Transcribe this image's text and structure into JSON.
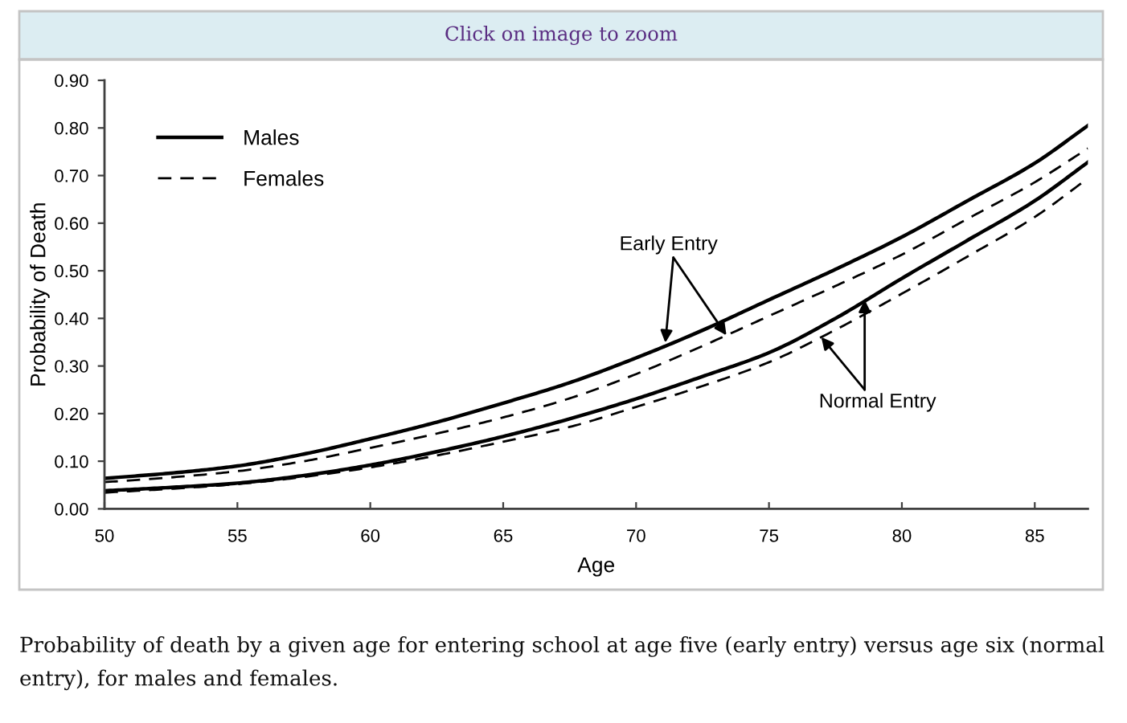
{
  "chart_data": {
    "type": "line",
    "xlabel": "Age",
    "ylabel": "Probability of Death",
    "x": [
      50,
      52.5,
      55,
      57.5,
      60,
      62.5,
      65,
      67.5,
      70,
      72.5,
      75,
      77.5,
      80,
      82.5,
      85,
      87
    ],
    "series": [
      {
        "name": "Males",
        "color": "#000000",
        "line_style": "solid",
        "values": [
          0.064,
          0.075,
          0.09,
          0.115,
          0.147,
          0.182,
          0.222,
          0.265,
          0.317,
          0.375,
          0.439,
          0.503,
          0.571,
          0.648,
          0.726,
          0.805
        ]
      },
      {
        "name": "Females",
        "color": "#000000",
        "line_style": "dashed",
        "values": [
          0.056,
          0.066,
          0.079,
          0.1,
          0.128,
          0.158,
          0.192,
          0.232,
          0.283,
          0.342,
          0.405,
          0.468,
          0.534,
          0.61,
          0.686,
          0.757
        ]
      },
      {
        "color": "#000000",
        "line_style": "solid",
        "values": [
          0.038,
          0.045,
          0.054,
          0.07,
          0.092,
          0.12,
          0.152,
          0.189,
          0.231,
          0.278,
          0.328,
          0.4,
          0.484,
          0.565,
          0.647,
          0.728
        ]
      },
      {
        "color": "#000000",
        "line_style": "dashed",
        "values": [
          0.034,
          0.042,
          0.052,
          0.067,
          0.087,
          0.112,
          0.141,
          0.172,
          0.214,
          0.258,
          0.308,
          0.376,
          0.452,
          0.531,
          0.613,
          0.694
        ]
      }
    ],
    "xlim": [
      50,
      87
    ],
    "ylim": [
      0,
      0.9
    ],
    "xticks": [
      50,
      55,
      60,
      65,
      70,
      75,
      80,
      85
    ],
    "yticks": [
      {
        "value": 0,
        "label": "0.00"
      },
      {
        "value": 0.1,
        "label": "0.10"
      },
      {
        "value": 0.2,
        "label": "0.20"
      },
      {
        "value": 0.3,
        "label": "0.30"
      },
      {
        "value": 0.4,
        "label": "0.40"
      },
      {
        "value": 0.5,
        "label": "0.50"
      },
      {
        "value": 0.6,
        "label": "0.60"
      },
      {
        "value": 0.7,
        "label": "0.70"
      },
      {
        "value": 0.8,
        "label": "0.80"
      },
      {
        "value": 0.9,
        "label": "0.90"
      }
    ],
    "legend": "top left",
    "annotations": [
      "Click on image to zoom",
      {
        "text": "Early Entry",
        "x": 71.1,
        "y": 0.349
      },
      {
        "text": "Normal Entry",
        "x": 78.6,
        "y": 0.439
      },
      "Probability of death by a given age for entering school at age five (early entry) versus age six (normal entry), for males and females."
    ]
  }
}
